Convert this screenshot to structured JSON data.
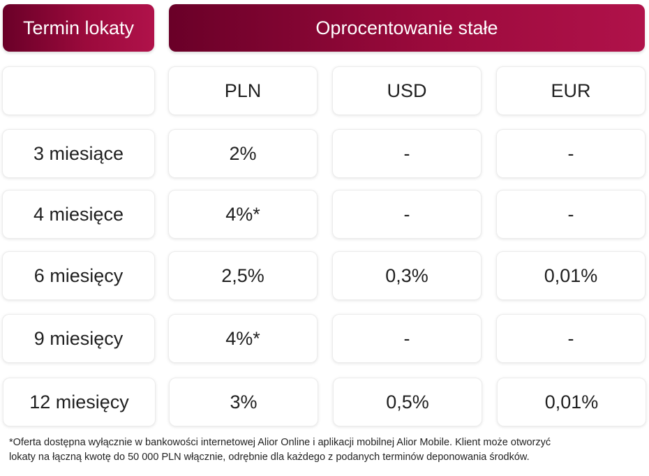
{
  "header": {
    "term_label": "Termin lokaty",
    "rate_label": "Oprocentowanie stałe"
  },
  "columns": [
    "",
    "PLN",
    "USD",
    "EUR"
  ],
  "rows": [
    {
      "term": "3 miesiące",
      "pln": "2%",
      "usd": "-",
      "eur": "-"
    },
    {
      "term": "4 miesięce",
      "pln": "4%*",
      "usd": "-",
      "eur": "-"
    },
    {
      "term": "6 miesięcy",
      "pln": "2,5%",
      "usd": "0,3%",
      "eur": "0,01%"
    },
    {
      "term": "9 miesięcy",
      "pln": "4%*",
      "usd": "-",
      "eur": "-"
    },
    {
      "term": "12 miesięcy",
      "pln": "3%",
      "usd": "0,5%",
      "eur": "0,01%"
    }
  ],
  "footnote": {
    "line1": "*Oferta dostępna wyłącznie w bankowości internetowej Alior Online i aplikacji mobilnej Alior Mobile. Klient może otworzyć",
    "line2": "lokaty na łączną kwotę do 50 000 PLN włącznie, odrębnie dla każdego z podanych terminów deponowania środków."
  },
  "colors": {
    "header_start": "#6a0028",
    "header_end": "#b0124a"
  }
}
